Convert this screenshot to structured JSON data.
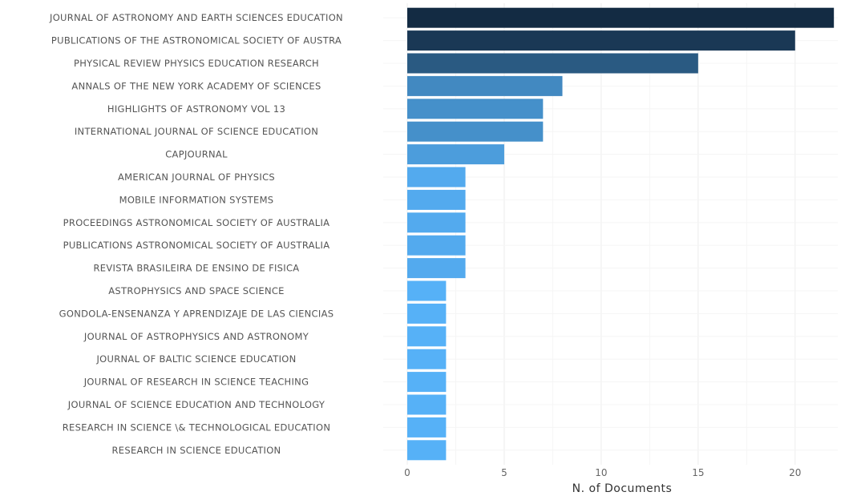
{
  "chart_data": {
    "type": "bar",
    "orientation": "horizontal",
    "categories": [
      "JOURNAL OF ASTRONOMY AND EARTH SCIENCES EDUCATION",
      "PUBLICATIONS OF THE ASTRONOMICAL SOCIETY OF AUSTRA",
      "PHYSICAL REVIEW PHYSICS EDUCATION RESEARCH",
      "ANNALS OF THE NEW YORK ACADEMY OF SCIENCES",
      "HIGHLIGHTS OF ASTRONOMY VOL 13",
      "INTERNATIONAL JOURNAL OF SCIENCE EDUCATION",
      "CAPJOURNAL",
      "AMERICAN JOURNAL OF PHYSICS",
      "MOBILE INFORMATION SYSTEMS",
      "PROCEEDINGS ASTRONOMICAL SOCIETY OF AUSTRALIA",
      "PUBLICATIONS ASTRONOMICAL SOCIETY OF AUSTRALIA",
      "REVISTA BRASILEIRA DE ENSINO DE FISICA",
      "ASTROPHYSICS AND SPACE SCIENCE",
      "GONDOLA-ENSENANZA Y APRENDIZAJE DE LAS CIENCIAS",
      "JOURNAL OF ASTROPHYSICS AND ASTRONOMY",
      "JOURNAL OF BALTIC SCIENCE EDUCATION",
      "JOURNAL OF RESEARCH IN SCIENCE TEACHING",
      "JOURNAL OF SCIENCE EDUCATION AND TECHNOLOGY",
      "RESEARCH IN SCIENCE \\& TECHNOLOGICAL EDUCATION",
      "RESEARCH IN SCIENCE EDUCATION"
    ],
    "values": [
      22,
      20,
      15,
      8,
      7,
      7,
      5,
      3,
      3,
      3,
      3,
      3,
      2,
      2,
      2,
      2,
      2,
      2,
      2,
      2
    ],
    "xlabel": "N. of Documents",
    "ylabel": "",
    "xlim": [
      0,
      22.2
    ],
    "xticks": [
      0,
      5,
      10,
      15,
      20
    ],
    "grid": true,
    "legend": "none",
    "color_scale": {
      "low": "#56b1f7",
      "high": "#132b43"
    }
  }
}
